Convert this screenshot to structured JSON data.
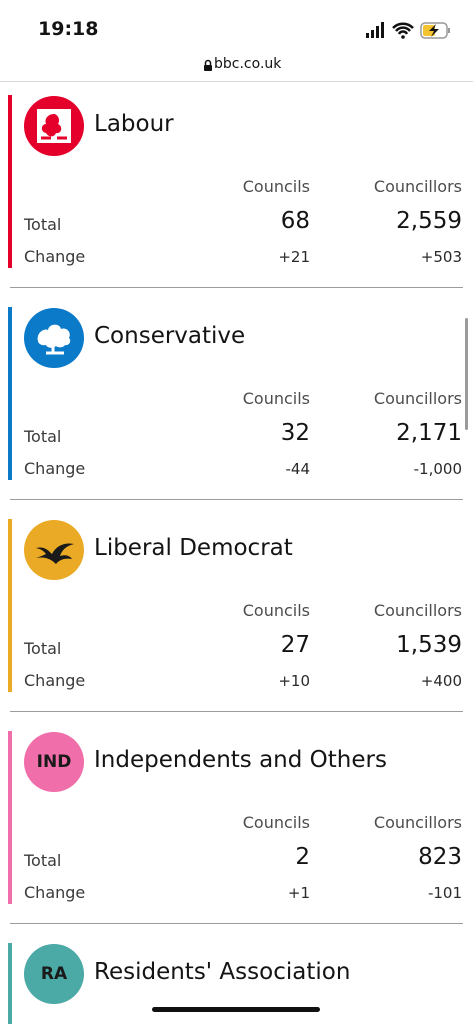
{
  "status_bar": {
    "time": "19:18"
  },
  "address_bar": {
    "url": "bbc.co.uk"
  },
  "parties": [
    {
      "name": "Labour",
      "color": "#e4002b",
      "table": {
        "header": [
          "Councils",
          "Councillors"
        ],
        "rows": [
          [
            "Total",
            "68",
            "2,559"
          ],
          [
            "Change",
            "+21",
            "+503"
          ]
        ]
      }
    },
    {
      "name": "Conservative",
      "color": "#0a7ac9",
      "table": {
        "header": [
          "Councils",
          "Councillors"
        ],
        "rows": [
          [
            "Total",
            "32",
            "2,171"
          ],
          [
            "Change",
            "-44",
            "-1,000"
          ]
        ]
      }
    },
    {
      "name": "Liberal Democrat",
      "color": "#eaaa25",
      "table": {
        "header": [
          "Councils",
          "Councillors"
        ],
        "rows": [
          [
            "Total",
            "27",
            "1,539"
          ],
          [
            "Change",
            "+10",
            "+400"
          ]
        ]
      }
    },
    {
      "name": "Independents and Others",
      "color": "#f06ea9",
      "badge": "IND",
      "table": {
        "header": [
          "Councils",
          "Councillors"
        ],
        "rows": [
          [
            "Total",
            "2",
            "823"
          ],
          [
            "Change",
            "+1",
            "-101"
          ]
        ]
      }
    },
    {
      "name": "Residents' Association",
      "color": "#4ba9a6",
      "badge": "RA"
    }
  ]
}
